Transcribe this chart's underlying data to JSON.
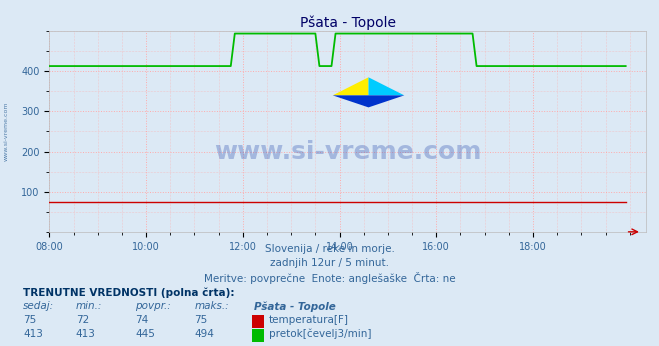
{
  "title": "Pšata - Topole",
  "bg_color": "#dce9f5",
  "plot_bg_color": "#dce9f5",
  "grid_color": "#ffaaaa",
  "grid_style": ":",
  "xmin": 0,
  "xmax": 143,
  "ymin": 0,
  "ymax": 500,
  "yticks": [
    100,
    200,
    300,
    400
  ],
  "xtick_labels": [
    "08:00",
    "10:00",
    "12:00",
    "14:00",
    "16:00",
    "18:00"
  ],
  "xtick_positions": [
    0,
    24,
    48,
    72,
    96,
    120
  ],
  "temp_color": "#cc0000",
  "flow_color": "#00bb00",
  "subtitle1": "Slovenija / reke in morje.",
  "subtitle2": "zadnjih 12ur / 5 minut.",
  "subtitle3": "Meritve: povprečne  Enote: anglešaške  Črta: ne",
  "table_header": "TRENUTNE VREDNOSTI (polna črta):",
  "col_headers": [
    "sedaj:",
    "min.:",
    "povpr.:",
    "maks.:",
    "Pšata - Topole"
  ],
  "temp_row": [
    "75",
    "72",
    "74",
    "75"
  ],
  "flow_row": [
    "413",
    "413",
    "445",
    "494"
  ],
  "temp_label": "temperatura[F]",
  "flow_label": "pretok[čevelj3/min]",
  "watermark": "www.si-vreme.com",
  "watermark_color": "#2244aa",
  "side_text": "www.si-vreme.com",
  "title_color": "#000066",
  "text_color": "#336699",
  "table_header_color": "#003366",
  "title_fontsize": 10,
  "subtitle_fontsize": 7.5,
  "table_fontsize": 7.5,
  "axis_tick_fontsize": 7
}
